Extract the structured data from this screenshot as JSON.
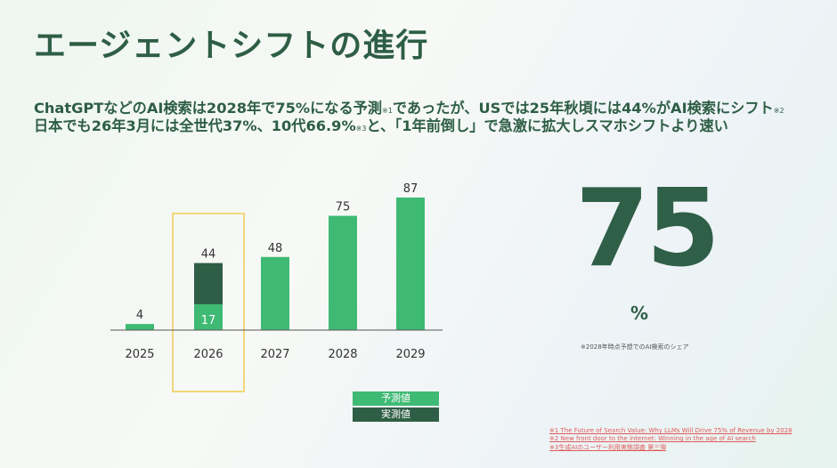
{
  "title": "エージェントシフトの進行",
  "subtitle": {
    "line1_a": "ChatGPTなどのAI検索は2028年で75%になる予測",
    "line1_n1": "※1",
    "line1_b": "であったが、USでは25年秋頃には44%がAI検索にシフト",
    "line1_n2": "※2",
    "line2_a": "日本でも26年3月には全世代37%、10代66.9%",
    "line2_n3": "※3",
    "line2_b": "と、「1年前倒し」で急激に拡大しスマホシフトより速い"
  },
  "highlight": {
    "value": "75",
    "unit": "%",
    "note": "※2028年時点予想でのAI検索のシェア"
  },
  "legend": {
    "forecast": "予測値",
    "actual": "実測値"
  },
  "footnotes": [
    "※1 The Future of Search Value: Why LLMs Will Drive 75% of Revenue by 2028",
    "※2 New front door to the internet: Winning in the age of AI search",
    "※3生成AIのユーザー利用実態調査 第三弾"
  ],
  "colors": {
    "forecast": "#3fba74",
    "actual": "#2e5e45",
    "highlight_box": "#f2d77a",
    "text": "#2e5e45"
  },
  "chart_data": {
    "type": "bar",
    "categories": [
      "2025",
      "2026",
      "2027",
      "2028",
      "2029"
    ],
    "series": [
      {
        "name": "予測値",
        "values": [
          4,
          17,
          48,
          75,
          87
        ]
      },
      {
        "name": "実測値",
        "values": [
          null,
          44,
          null,
          null,
          null
        ]
      }
    ],
    "data_labels": [
      "4",
      "44",
      "48",
      "75",
      "87"
    ],
    "inner_labels": [
      "",
      "17",
      "",
      "",
      ""
    ],
    "highlighted_category": "2026",
    "ylim": [
      0,
      87
    ],
    "grid": false
  }
}
